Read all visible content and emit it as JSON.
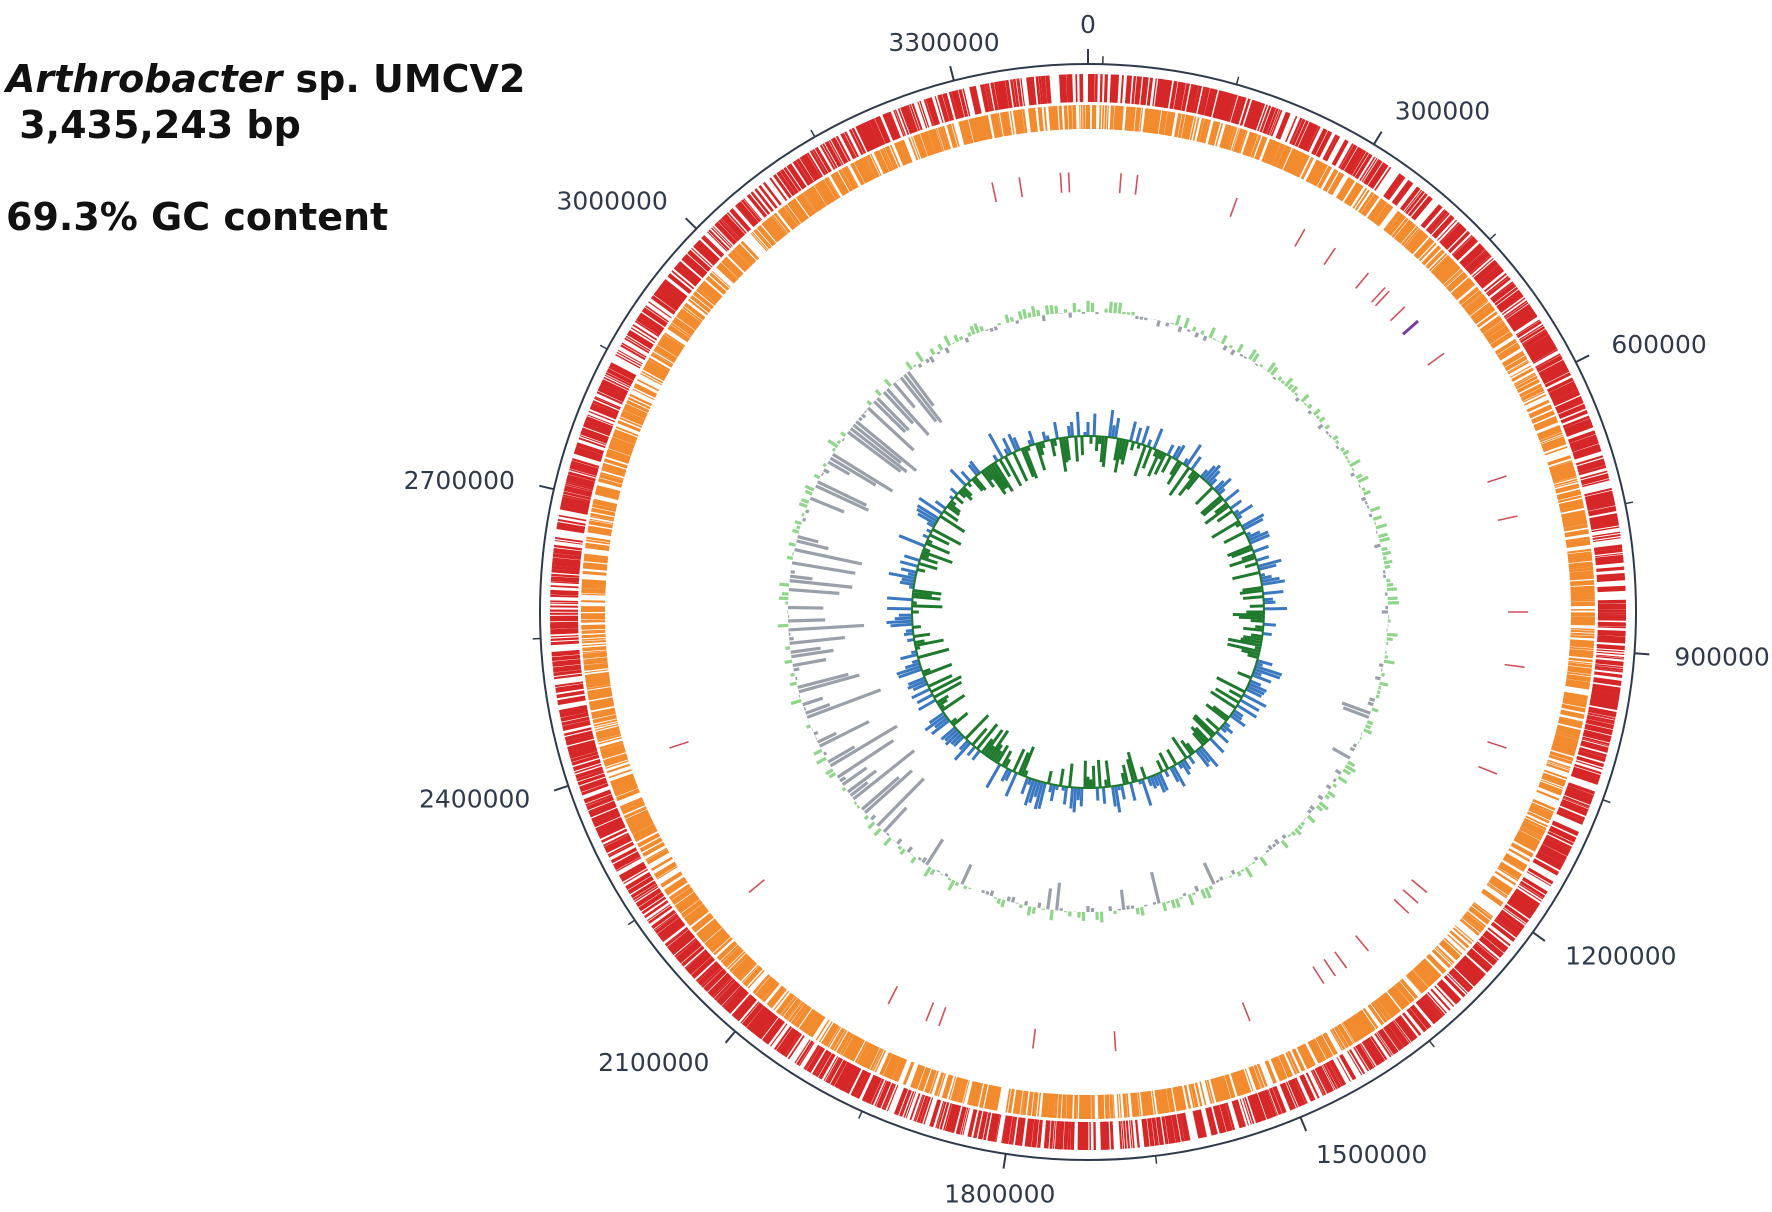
{
  "title": {
    "organism_genus": "Arthrobacter",
    "organism_rest": " sp. UMCV2",
    "genome_size": " 3,435,243 bp",
    "gc_content": "69.3% GC content"
  },
  "genome_length_bp": 3435243,
  "scale_ticks": [
    "0",
    "300000",
    "600000",
    "900000",
    "1200000",
    "1500000",
    "1800000",
    "2100000",
    "2400000",
    "2700000",
    "3000000",
    "3300000"
  ],
  "tracks": [
    {
      "name": "cds-forward-strand",
      "color": "#d62728"
    },
    {
      "name": "cds-reverse-strand",
      "color": "#f28a2e"
    },
    {
      "name": "rna-features",
      "color": "#d0505a"
    },
    {
      "name": "gc-content-positive",
      "color": "#8fd68a"
    },
    {
      "name": "gc-content-negative",
      "color": "#9aa0aa"
    },
    {
      "name": "gc-skew-positive",
      "color": "#3a78c2"
    },
    {
      "name": "gc-skew-negative",
      "color": "#1f7a2e"
    }
  ],
  "colors": {
    "backbone": "#2f3b4c",
    "rrna_highlight": "#7a3a9a"
  }
}
